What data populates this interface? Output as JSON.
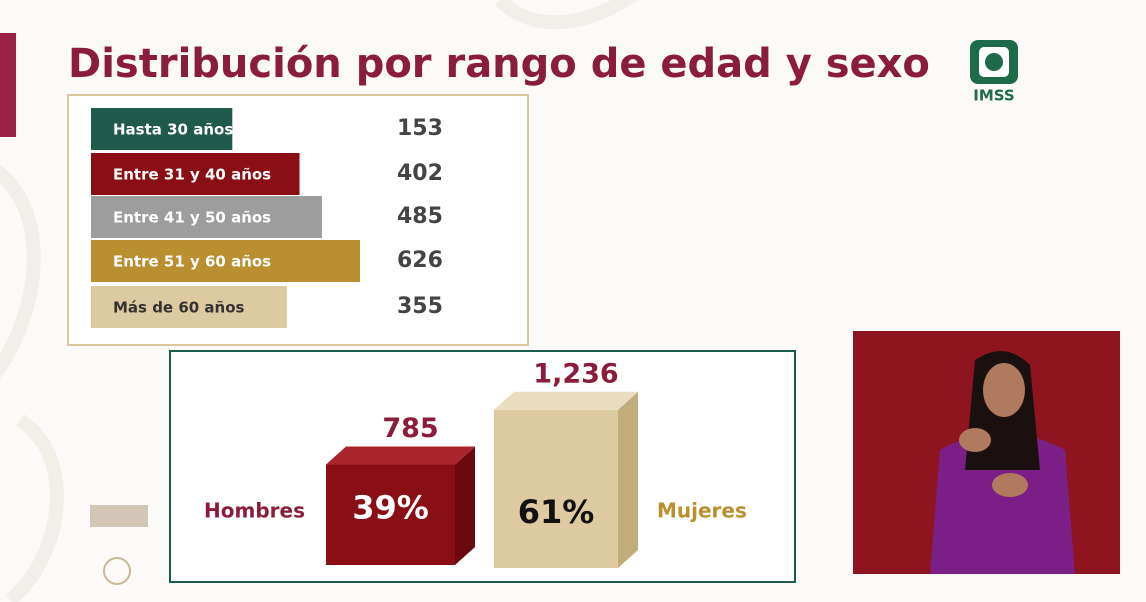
{
  "logo": "IMSS",
  "chart_data": [
    {
      "type": "bar",
      "orientation": "horizontal",
      "title": "Distribución por rango de edad y sexo",
      "categories": [
        "Hasta 30 años",
        "Entre 31 y 40 años",
        "Entre 41 y 50 años",
        "Entre 51 y 60 años",
        "Más de 60 años"
      ],
      "values": [
        153,
        402,
        485,
        626,
        355
      ],
      "colors": [
        "#1f5a4c",
        "#8a0f14",
        "#9d9d9d",
        "#b98f30",
        "#ddcaa0"
      ]
    },
    {
      "type": "bar",
      "orientation": "vertical",
      "categories": [
        "Hombres",
        "Mujeres"
      ],
      "values": [
        785,
        1236
      ],
      "value_labels": [
        "785",
        "1,236"
      ],
      "percentages": [
        39,
        61
      ],
      "percentage_labels": [
        "39%",
        "61%"
      ],
      "colors": [
        "#8a0f14",
        "#ddcaa0"
      ]
    }
  ]
}
